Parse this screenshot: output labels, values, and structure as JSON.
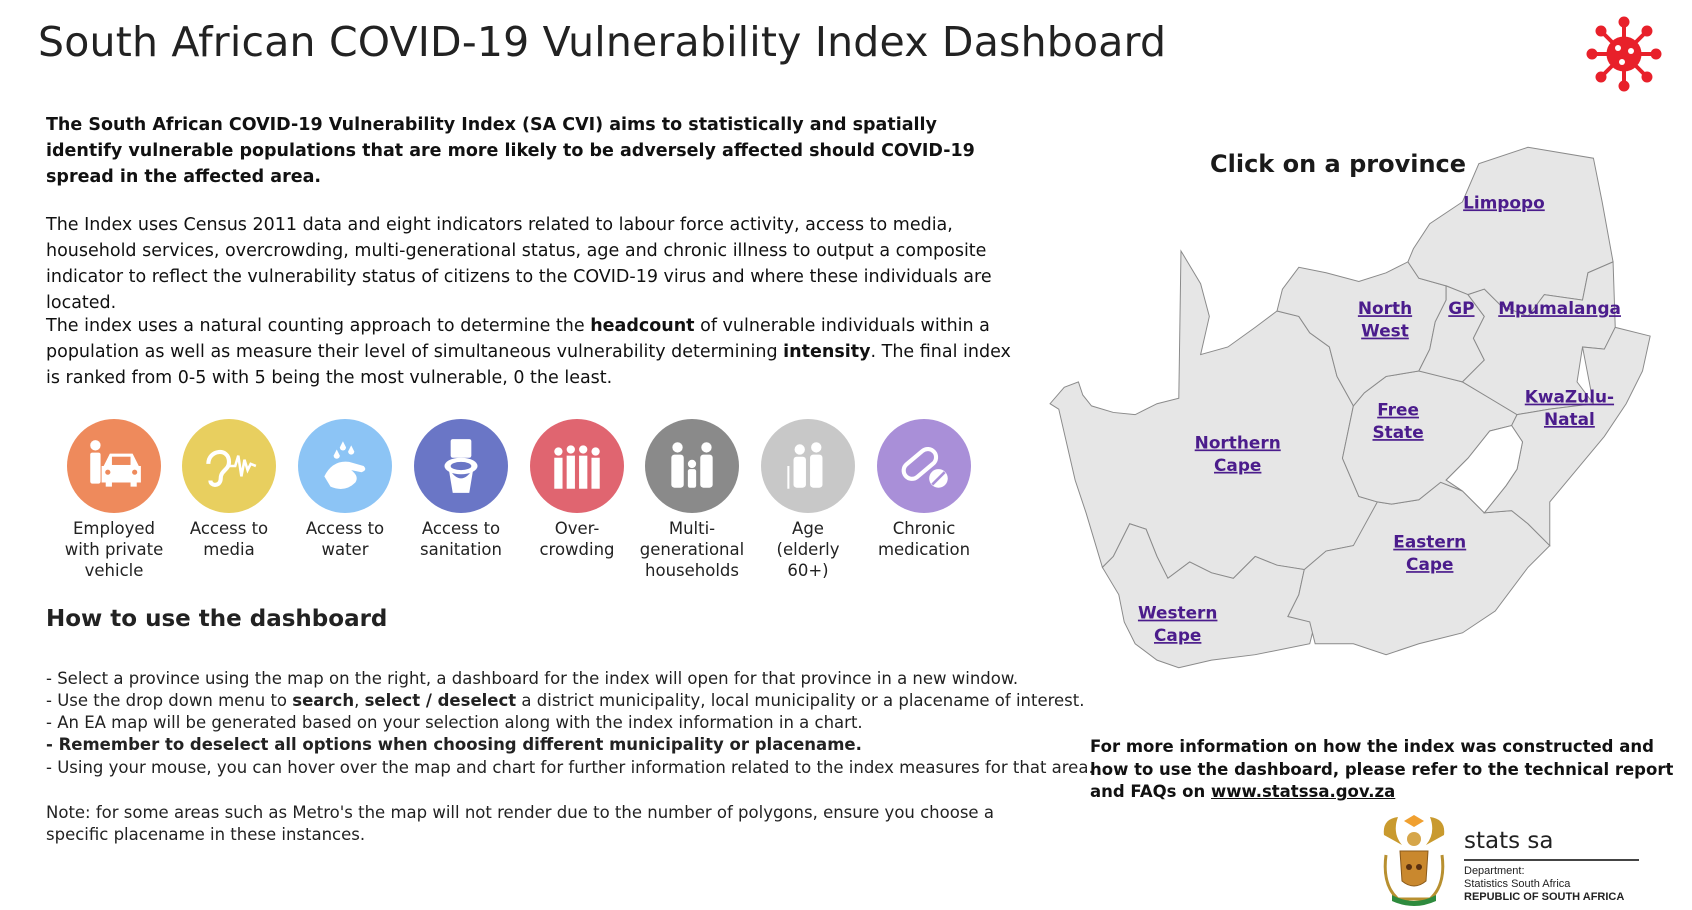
{
  "header": {
    "title": "South African COVID-19 Vulnerability Index Dashboard",
    "logo_icon": "virus-icon",
    "accent_color": "#e8202a"
  },
  "intro": {
    "lead": "The South African COVID-19 Vulnerability Index (SA CVI) aims to statistically and spatially identify vulnerable populations that are more likely to be adversely affected should COVID-19 spread in the affected area.",
    "p2": "The Index uses Census 2011 data and eight indicators related to labour force activity, access to media, household services, overcrowding, multi-generational status, age and chronic illness to output a composite indicator to reflect the vulnerability status of citizens to the COVID-19 virus and where these individuals are located.",
    "p3_a": "The index uses a natural counting approach to determine the ",
    "p3_b": "headcount",
    "p3_c": " of vulnerable individuals within a population as well as measure their level of simultaneous vulnerability determining ",
    "p3_d": "intensity",
    "p3_e": ". The final index is ranked from 0-5 with 5 being the most vulnerable, 0 the least."
  },
  "indicators": [
    {
      "label": "Employed with private vehicle",
      "icon": "car-person-icon",
      "color": "#ee8a5c"
    },
    {
      "label": "Access to media",
      "icon": "ear-sound-icon",
      "color": "#e8cf5f"
    },
    {
      "label": "Access to water",
      "icon": "hand-washing-icon",
      "color": "#8cc4f5"
    },
    {
      "label": "Access to sanitation",
      "icon": "toilet-icon",
      "color": "#6a76c6"
    },
    {
      "label": "Over-crowding",
      "icon": "crowd-icon",
      "color": "#e06570"
    },
    {
      "label": "Multi-generational households",
      "icon": "family-icon",
      "color": "#8a8a8a"
    },
    {
      "label": "Age (elderly 60+)",
      "icon": "elderly-couple-icon",
      "color": "#c8c8c8"
    },
    {
      "label": "Chronic medication",
      "icon": "pill-icon",
      "color": "#a98fd8"
    }
  ],
  "howto": {
    "heading": "How to use the dashboard",
    "b1": "- Select a province using the map on the right, a dashboard for the index will open for that province in a new window.",
    "b2_a": "- Use the drop down menu to ",
    "b2_b": "search",
    "b2_c": ", ",
    "b2_d": "select / deselect",
    "b2_e": " a district municipality, local municipality or a placename of interest.",
    "b3": " - An EA map will be generated based on your selection along with the index information in a chart.",
    "b4": "- Remember to deselect all options when choosing different municipality or placename.",
    "b5": "- Using your mouse, you can hover over the map and chart for further information related to the index measures for that area.",
    "note": "Note: for some areas such as Metro's the map will not render due to the number of polygons, ensure you choose a specific placename in these instances."
  },
  "map": {
    "heading": "Click on a province",
    "link_color": "#4b1c8c",
    "provinces": {
      "limpopo": [
        "Limpopo"
      ],
      "north_west": [
        "North",
        "West"
      ],
      "gp": [
        "GP"
      ],
      "mpumalanga": [
        "Mpumalanga"
      ],
      "kzn": [
        "KwaZulu-",
        "Natal"
      ],
      "free_state": [
        "Free",
        "State"
      ],
      "northern_cape": [
        "Northern",
        "Cape"
      ],
      "eastern_cape": [
        "Eastern",
        "Cape"
      ],
      "western_cape": [
        "Western",
        "Cape"
      ]
    }
  },
  "footer": {
    "info": "For more information on how the index was constructed and how to use the dashboard, please refer to the technical report and FAQs on ",
    "link": "www.statssa.gov.za",
    "logo": {
      "name": "stats sa",
      "line1": "Department:",
      "line2": "Statistics South Africa",
      "line3": "REPUBLIC OF SOUTH AFRICA"
    }
  }
}
